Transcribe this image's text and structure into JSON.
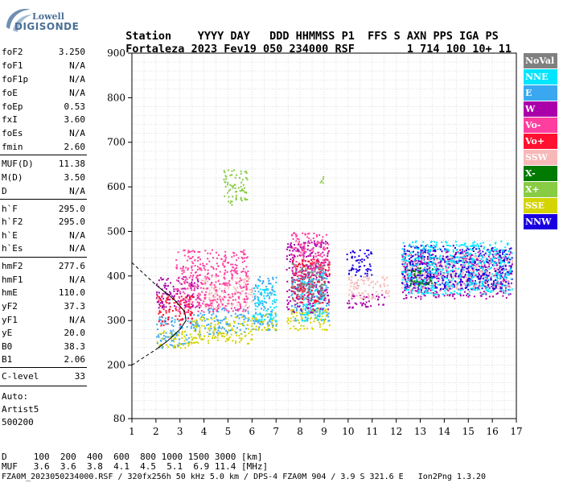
{
  "logo": {
    "line1": "Lowell",
    "line2": "DIGISONDE"
  },
  "header": {
    "labels": [
      "Station",
      "YYYY",
      "DAY",
      "DDD",
      "HHMMSS",
      "P1",
      "FFS",
      "S",
      "AXN",
      "PPS",
      "IGA",
      "PS"
    ],
    "values": [
      "Fortaleza",
      "2023",
      "Fev19",
      "050",
      "234000",
      "RSF",
      "",
      "1",
      "714",
      "100",
      "10+",
      "11"
    ]
  },
  "params": [
    {
      "k": "foF2",
      "v": "3.250"
    },
    {
      "k": "foF1",
      "v": "N/A"
    },
    {
      "k": "foF1p",
      "v": "N/A"
    },
    {
      "k": "foE",
      "v": "N/A"
    },
    {
      "k": "foEp",
      "v": "0.53"
    },
    {
      "k": "fxI",
      "v": "3.60"
    },
    {
      "k": "foEs",
      "v": "N/A"
    },
    {
      "k": "fmin",
      "v": "2.60"
    },
    {
      "k": "MUF(D)",
      "v": "11.38"
    },
    {
      "k": "M(D)",
      "v": "3.50"
    },
    {
      "k": "D",
      "v": "N/A"
    },
    {
      "k": "h`F",
      "v": "295.0"
    },
    {
      "k": "h`F2",
      "v": "295.0"
    },
    {
      "k": "h`E",
      "v": "N/A"
    },
    {
      "k": "h`Es",
      "v": "N/A"
    },
    {
      "k": "hmF2",
      "v": "277.6"
    },
    {
      "k": "hmF1",
      "v": "N/A"
    },
    {
      "k": "hmE",
      "v": "110.0"
    },
    {
      "k": "yF2",
      "v": "37.3"
    },
    {
      "k": "yF1",
      "v": "N/A"
    },
    {
      "k": "yE",
      "v": "20.0"
    },
    {
      "k": "B0",
      "v": "38.3"
    },
    {
      "k": "B1",
      "v": "2.06"
    },
    {
      "k": "C-level",
      "v": "33"
    }
  ],
  "auto": {
    "line1": "Auto:",
    "line2": "Artist5",
    "line3": "500200"
  },
  "legend": [
    {
      "label": "NoVal",
      "color": "#808080"
    },
    {
      "label": "NNE",
      "color": "#00e5ff"
    },
    {
      "label": "E",
      "color": "#3aa8f0"
    },
    {
      "label": "W",
      "color": "#aa00aa"
    },
    {
      "label": "Vo-",
      "color": "#ff3fa0"
    },
    {
      "label": "Vo+",
      "color": "#ff1030"
    },
    {
      "label": "SSW",
      "color": "#f7b8b8"
    },
    {
      "label": "X-",
      "color": "#007a00"
    },
    {
      "label": "X+",
      "color": "#88cc44"
    },
    {
      "label": "SSE",
      "color": "#d4d400"
    },
    {
      "label": "NNW",
      "color": "#1a00e0"
    }
  ],
  "bottom": {
    "d_row": "D     100  200  400  600  800 1000 1500 3000 [km]",
    "muf_row": "MUF   3.6  3.6  3.8  4.1  4.5  5.1  6.9 11.4 [MHz]",
    "file_row": "FZA0M_2023050234000.RSF / 320fx256h 50 kHz 5.0 km / DPS-4 FZA0M 904 / 3.9 S 321.6 E   Ion2Png 1.3.20"
  },
  "chart_data": {
    "type": "scatter",
    "title": "",
    "xlabel": "",
    "ylabel": "",
    "xlim": [
      1,
      17
    ],
    "ylim": [
      80,
      900
    ],
    "xticks": [
      1,
      2,
      3,
      4,
      5,
      6,
      7,
      8,
      9,
      10,
      11,
      12,
      13,
      14,
      15,
      16,
      17
    ],
    "yticks": [
      80,
      200,
      300,
      400,
      500,
      600,
      700,
      800,
      900
    ],
    "grid": true,
    "series": [
      {
        "name": "E",
        "color": "#3aa8f0",
        "clusters": [
          [
            2.0,
            3.4,
            240,
            310
          ],
          [
            3.4,
            5.9,
            270,
            330
          ],
          [
            6.0,
            7.0,
            280,
            400
          ],
          [
            7.6,
            9.2,
            300,
            400
          ]
        ]
      },
      {
        "name": "SSE",
        "color": "#d4d400",
        "clusters": [
          [
            2.0,
            3.5,
            240,
            280
          ],
          [
            3.5,
            6.0,
            250,
            310
          ],
          [
            6.0,
            7.0,
            280,
            320
          ],
          [
            7.4,
            9.2,
            280,
            330
          ]
        ]
      },
      {
        "name": "W",
        "color": "#aa00aa",
        "clusters": [
          [
            2.0,
            3.8,
            330,
            400
          ],
          [
            7.4,
            9.2,
            320,
            480
          ],
          [
            9.9,
            11.5,
            330,
            360
          ],
          [
            12.2,
            16.8,
            350,
            460
          ]
        ]
      },
      {
        "name": "SSW",
        "color": "#f7b8b8",
        "clusters": [
          [
            3.8,
            6.0,
            330,
            400
          ],
          [
            10.0,
            11.8,
            350,
            400
          ],
          [
            12.2,
            16.8,
            370,
            450
          ]
        ]
      },
      {
        "name": "NNW",
        "color": "#1a00e0",
        "clusters": [
          [
            9.9,
            11.0,
            400,
            460
          ],
          [
            12.2,
            16.8,
            370,
            470
          ]
        ]
      },
      {
        "name": "NNE",
        "color": "#00e5ff",
        "clusters": [
          [
            6.0,
            7.0,
            300,
            380
          ],
          [
            8.0,
            9.0,
            300,
            420
          ],
          [
            12.2,
            16.8,
            360,
            480
          ]
        ]
      },
      {
        "name": "Vo+",
        "color": "#ff1030",
        "clusters": [
          [
            2.0,
            3.5,
            290,
            360
          ],
          [
            7.6,
            9.2,
            340,
            440
          ]
        ]
      },
      {
        "name": "Vo-",
        "color": "#ff3fa0",
        "clusters": [
          [
            2.8,
            5.8,
            320,
            460
          ],
          [
            7.6,
            9.2,
            400,
            500
          ]
        ]
      },
      {
        "name": "NoVal",
        "color": "#808080",
        "clusters": [
          [
            7.6,
            9.0,
            350,
            430
          ]
        ]
      },
      {
        "name": "X+",
        "color": "#88cc44",
        "clusters": [
          [
            4.8,
            5.8,
            560,
            640
          ],
          [
            8.8,
            9.0,
            610,
            640
          ]
        ]
      },
      {
        "name": "X-",
        "color": "#007a00",
        "clusters": [
          [
            12.5,
            13.5,
            380,
            420
          ]
        ]
      }
    ],
    "profile_curve": {
      "x": [
        2.0,
        2.5,
        3.0,
        3.25,
        3.2,
        2.8,
        2.0
      ],
      "y": [
        235,
        255,
        280,
        300,
        320,
        345,
        380
      ]
    }
  }
}
